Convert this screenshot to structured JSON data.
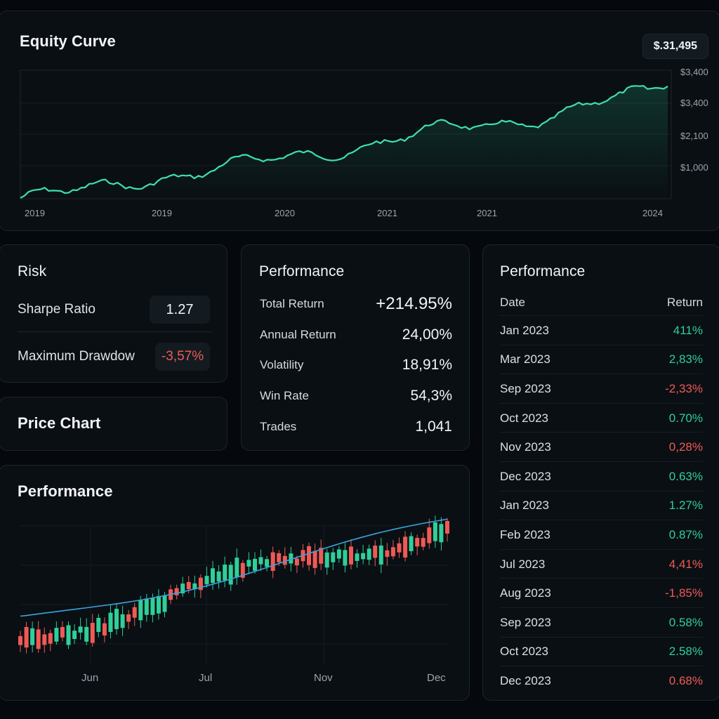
{
  "equity": {
    "title": "Equity Curve",
    "badge": "$.31,495",
    "y_labels": [
      "$3,400",
      "$3,400",
      "$2,100",
      "$1,000"
    ],
    "x_labels": [
      "2019",
      "2019",
      "2020",
      "2021",
      "2021",
      "2024"
    ],
    "line_color": "#3ee0a8"
  },
  "risk": {
    "title": "Risk",
    "sharpe_label": "Sharpe Ratio",
    "sharpe_value": "1.27",
    "drawdown_label": "Maximum Drawdow",
    "drawdown_value": "-3,57%"
  },
  "price_chart": {
    "title": "Price Chart"
  },
  "perf_metrics": {
    "title": "Performance",
    "rows": [
      {
        "label": "Total Return",
        "value": "+214.95%",
        "tone": "pos"
      },
      {
        "label": "Annual Return",
        "value": "24,00%",
        "tone": ""
      },
      {
        "label": "Volatility",
        "value": "18,91%",
        "tone": ""
      },
      {
        "label": "Win Rate",
        "value": "54,3%",
        "tone": ""
      },
      {
        "label": "Trades",
        "value": "1,041",
        "tone": ""
      }
    ]
  },
  "perf_candles": {
    "title": "Performance",
    "x_labels": [
      "Jun",
      "Jul",
      "Nov",
      "Dec"
    ],
    "up_color": "#2fcf99",
    "down_color": "#ef5a55",
    "ma_color": "#3aa3e0"
  },
  "perf_table": {
    "title": "Performance",
    "col_date": "Date",
    "col_return": "Return",
    "rows": [
      {
        "date": "Jan 2023",
        "ret": "411%",
        "tone": "pos"
      },
      {
        "date": "Mar 2023",
        "ret": "2,83%",
        "tone": "pos"
      },
      {
        "date": "Sep 2023",
        "ret": "-2,33%",
        "tone": "neg"
      },
      {
        "date": "Oct 2023",
        "ret": "0.70%",
        "tone": "pos"
      },
      {
        "date": "Nov 2023",
        "ret": "0,28%",
        "tone": "neg"
      },
      {
        "date": "Dec 2023",
        "ret": "0.63%",
        "tone": "pos"
      },
      {
        "date": "Jan 2023",
        "ret": "1.27%",
        "tone": "pos"
      },
      {
        "date": "Feb 2023",
        "ret": "0.87%",
        "tone": "pos"
      },
      {
        "date": "Jul 2023",
        "ret": "4,41%",
        "tone": "neg"
      },
      {
        "date": "Aug 2023",
        "ret": "-1,85%",
        "tone": "neg"
      },
      {
        "date": "Sep 2023",
        "ret": "0.58%",
        "tone": "pos"
      },
      {
        "date": "Oct 2023",
        "ret": "2.58%",
        "tone": "pos"
      },
      {
        "date": "Dec 2023",
        "ret": "0.68%",
        "tone": "neg"
      }
    ]
  }
}
